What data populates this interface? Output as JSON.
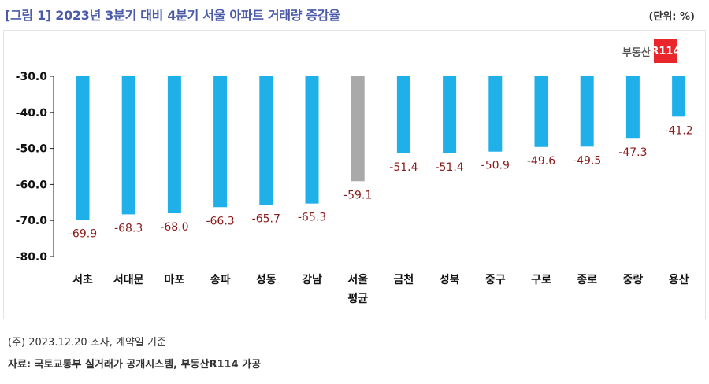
{
  "title": "[그림 1] 2023년 3분기 대비 4분기 서울 아파트 거래량 증감율",
  "unit": "(단위: %)",
  "logo": {
    "text": "부동산",
    "box": "R114"
  },
  "footnote": "(주) 2023.12.20 조사, 계약일 기준",
  "source": "자료: 국토교통부 실거래가 공개시스템, 부동산R114 가공",
  "chart_data": {
    "type": "bar",
    "categories": [
      "서초",
      "서대문",
      "마포",
      "송파",
      "성동",
      "강남",
      "서울\n평균",
      "금천",
      "성북",
      "중구",
      "구로",
      "종로",
      "중랑",
      "용산"
    ],
    "values": [
      -69.9,
      -68.3,
      -68.0,
      -66.3,
      -65.7,
      -65.3,
      -59.1,
      -51.4,
      -51.4,
      -50.9,
      -49.6,
      -49.5,
      -47.3,
      -41.2
    ],
    "value_labels": [
      "-69.9",
      "-68.3",
      "-68.0",
      "-66.3",
      "-65.7",
      "-65.3",
      "-59.1",
      "-51.4",
      "-51.4",
      "-50.9",
      "-49.6",
      "-49.5",
      "-47.3",
      "-41.2"
    ],
    "yticks": [
      "-30.0",
      "-40.0",
      "-50.0",
      "-60.0",
      "-70.0",
      "-80.0"
    ],
    "ylim": [
      -80,
      -30
    ],
    "bars_hang_from": -30,
    "grid": false,
    "highlight_index": 6,
    "colors": {
      "bar": "#1fb0ea",
      "highlight": "#a9a9a9",
      "value_label": "#8b1a1a",
      "axis": "#222222"
    }
  }
}
